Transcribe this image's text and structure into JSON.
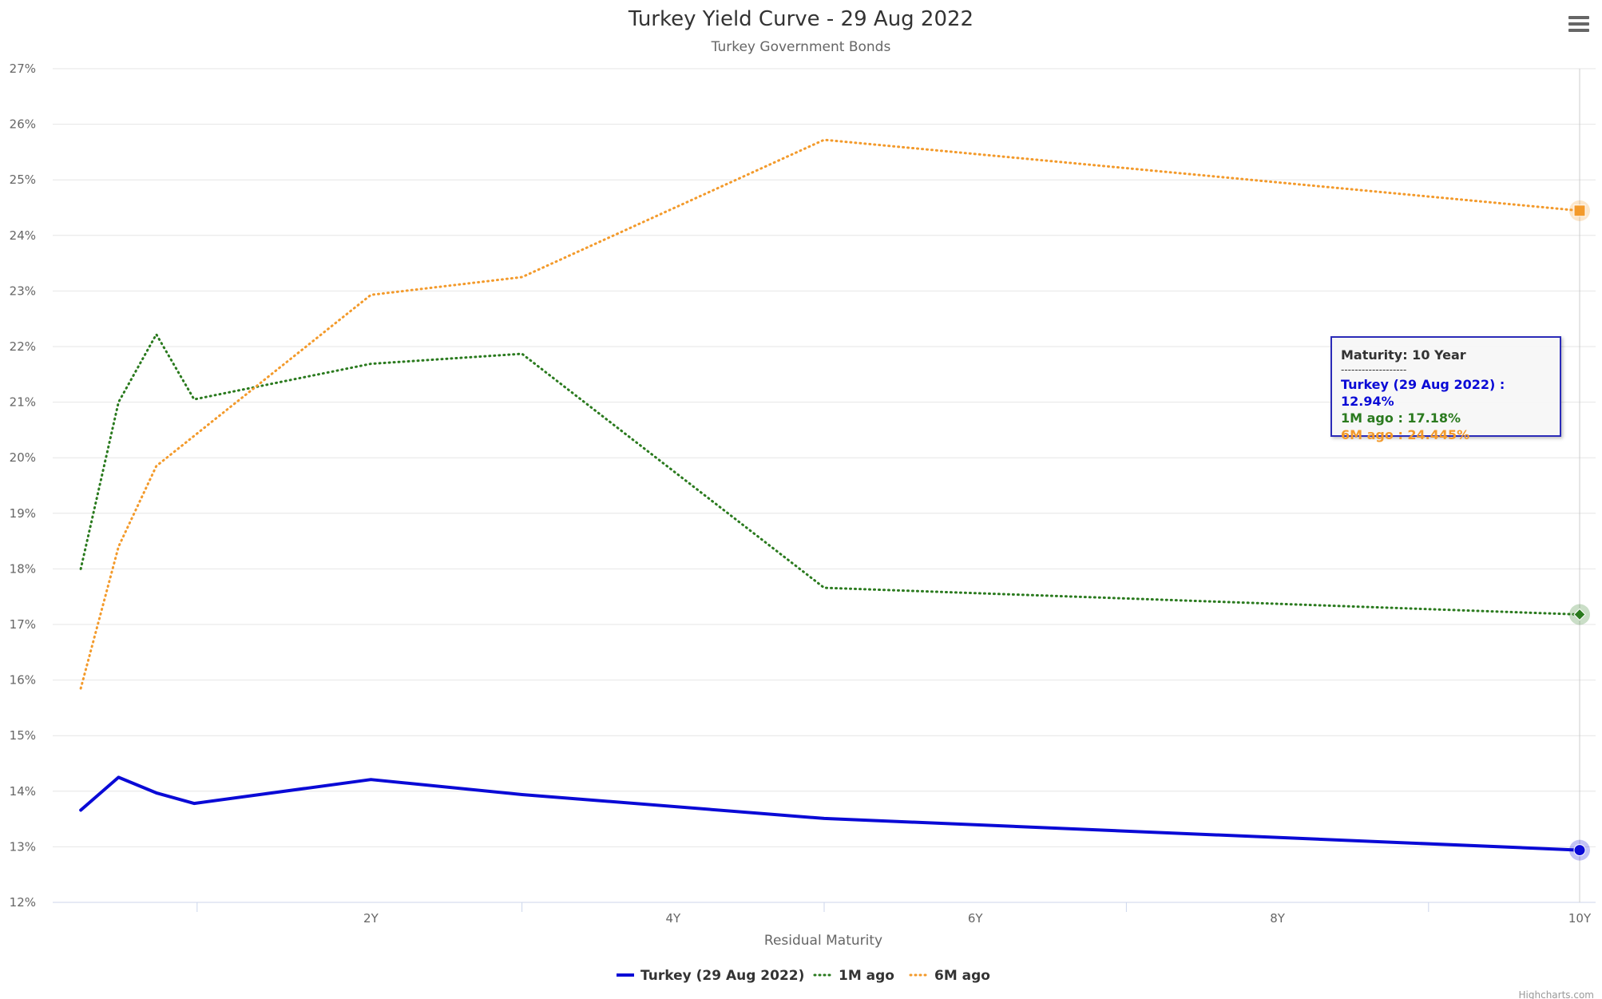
{
  "chart_data": {
    "type": "line",
    "title": "Turkey Yield Curve - 29 Aug 2022",
    "subtitle": "Turkey Government Bonds",
    "xlabel": "Residual Maturity",
    "ylabel": "",
    "xlim": [
      0,
      10
    ],
    "ylim": [
      12,
      27
    ],
    "x_ticks": [
      "2Y",
      "4Y",
      "6Y",
      "8Y",
      "10Y"
    ],
    "y_ticks": [
      "12%",
      "13%",
      "14%",
      "15%",
      "16%",
      "17%",
      "18%",
      "19%",
      "20%",
      "21%",
      "22%",
      "23%",
      "24%",
      "25%",
      "26%",
      "27%"
    ],
    "grid": true,
    "legend_position": "bottom-center",
    "series": [
      {
        "name": "Turkey (29 Aug 2022)",
        "color": "#0a0ad6",
        "style": "solid",
        "marker": "circle",
        "x": [
          0.08,
          0.33,
          0.58,
          0.83,
          2,
          3,
          5,
          10
        ],
        "values": [
          13.66,
          14.25,
          13.97,
          13.78,
          14.21,
          13.94,
          13.51,
          12.94
        ]
      },
      {
        "name": "1M ago",
        "color": "#2a7a1e",
        "style": "dotted",
        "marker": "diamond",
        "x": [
          0.08,
          0.33,
          0.58,
          0.83,
          2,
          3,
          5,
          10
        ],
        "values": [
          18.0,
          21.0,
          22.22,
          21.05,
          21.69,
          21.87,
          17.66,
          17.18
        ]
      },
      {
        "name": "6M ago",
        "color": "#f39a2b",
        "style": "dotted",
        "marker": "square",
        "x": [
          0.08,
          0.33,
          0.58,
          2,
          3,
          5,
          10
        ],
        "values": [
          15.85,
          18.4,
          19.85,
          22.93,
          23.25,
          25.72,
          24.445
        ]
      }
    ]
  },
  "tooltip": {
    "header": "Maturity: 10 Year",
    "separator": "-------------------",
    "lines": [
      {
        "text": "Turkey (29 Aug 2022) : 12.94%",
        "color": "#0a0ad6"
      },
      {
        "text": "1M ago : 17.18%",
        "color": "#2a7a1e"
      },
      {
        "text": "6M ago : 24.445%",
        "color": "#f39a2b"
      }
    ]
  },
  "credits": "Highcharts.com",
  "menu": {
    "icon": "hamburger-menu-icon"
  }
}
